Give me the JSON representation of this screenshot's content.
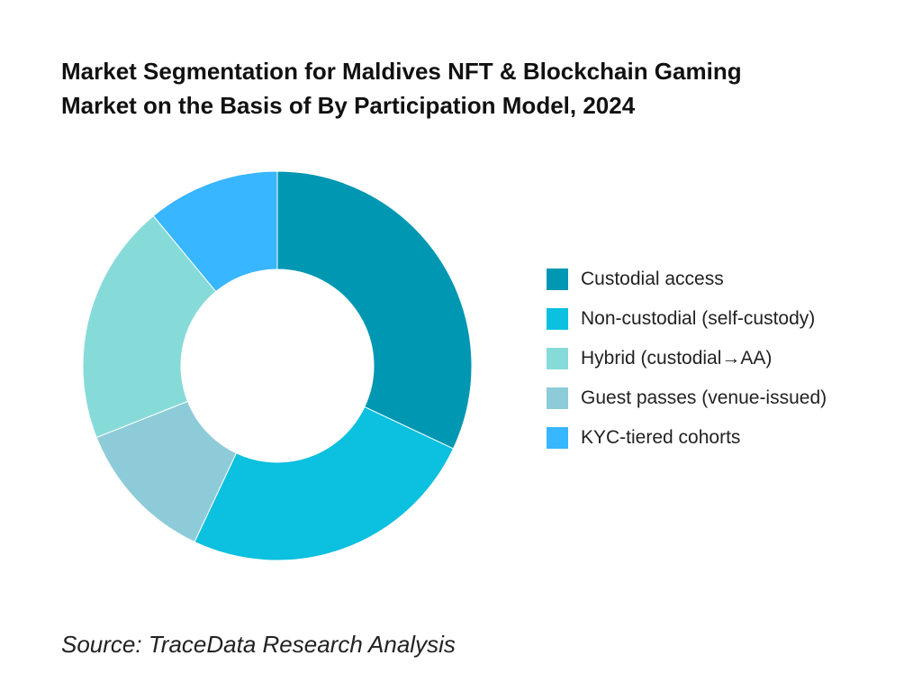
{
  "title_lines": [
    "Market Segmentation for Maldives NFT & Blockchain Gaming",
    "Market on the Basis of By Participation Model, 2024"
  ],
  "source": "Source: TraceData Research Analysis",
  "chart_data": {
    "type": "pie",
    "variant": "donut",
    "title": "Market Segmentation for Maldives NFT & Blockchain Gaming Market on the Basis of By Participation Model, 2024",
    "start": "12 o'clock",
    "direction": "clockwise",
    "legend_position": "right",
    "categories": [
      "Custodial access",
      "Non-custodial (self-custody)",
      "Hybrid (custodial→AA)",
      "Guest passes (venue-issued)",
      "KYC-tiered cohorts"
    ],
    "values": [
      32,
      25,
      20,
      12,
      11
    ],
    "draw_order": [
      0,
      1,
      3,
      2,
      4
    ],
    "colors": [
      "#0097b2",
      "#0cc0df",
      "#86dbd9",
      "#8ecbd9",
      "#38b6ff"
    ]
  }
}
